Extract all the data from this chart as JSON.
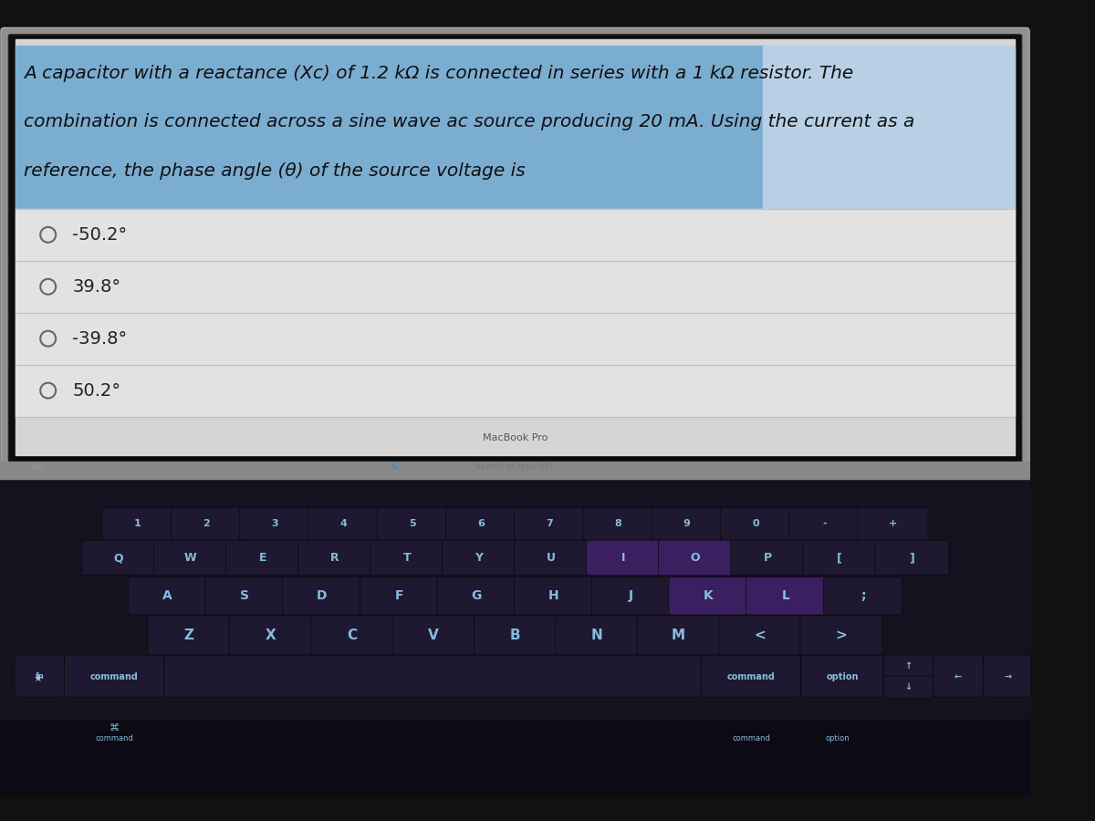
{
  "question_text_line1": "A capacitor with a reactance (Xc) of 1.2 kΩ is connected in series with a 1 kΩ resistor. The",
  "question_text_line2": "combination is connected across a sine wave ac source producing 20 mA. Using the current as a",
  "question_text_line3": "reference, the phase angle (θ) of the source voltage is",
  "options": [
    "-50.2°",
    "39.8°",
    "-39.8°",
    "50.2°"
  ],
  "screen_bg": "#d0d0d0",
  "question_box_color": "#7badd1",
  "question_box_right_color": "#b8d0e5",
  "options_bg": "#e8e8e8",
  "divider_color": "#c0c0c0",
  "option_text_color": "#222222",
  "question_text_color": "#111111",
  "macbook_frame_color": "#8a8a8a",
  "screen_bezel_color": "#111111",
  "touchbar_bg": "#0a0a0a",
  "touchbar_text_color": "#888888",
  "keyboard_bg_top": "#1a1520",
  "keyboard_bg_bottom": "#0d0d15",
  "key_color_normal": "#1e1830",
  "key_color_purple": "#3a2060",
  "key_text_color": "#88bbdd",
  "macbook_label_color": "#555555",
  "macbook_label": "MacBook Pro",
  "silver_frame_color": "#909090",
  "bottom_bar_color": "#050510",
  "touchbar_esc": "esc",
  "touchbar_search": "Search or type URL"
}
